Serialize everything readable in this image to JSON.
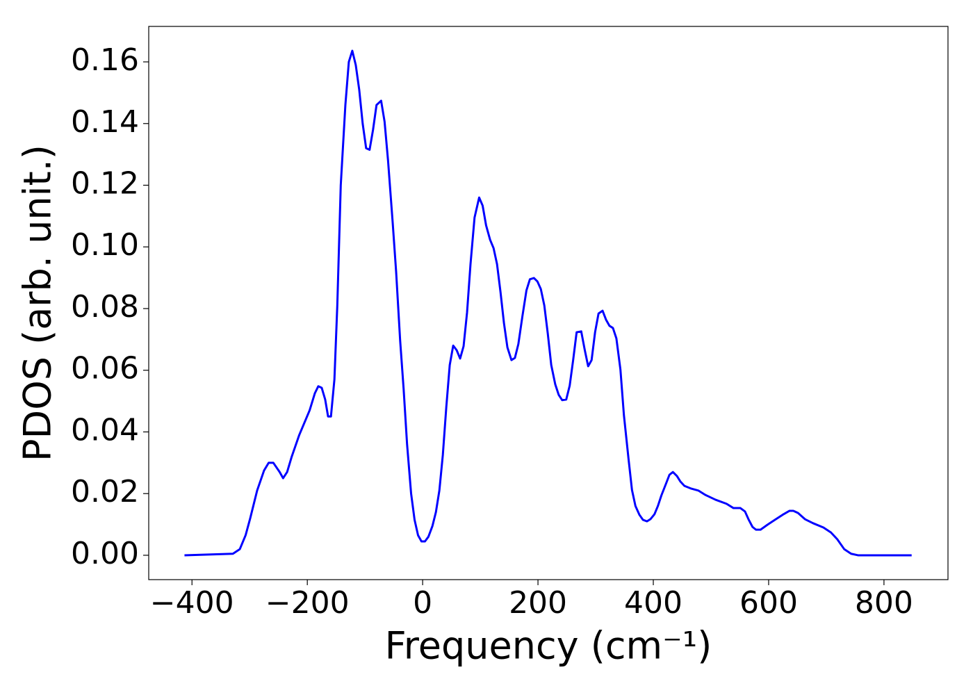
{
  "chart_data": {
    "type": "line",
    "xlabel": "Frequency (cm⁻¹)",
    "ylabel": "PDOS (arb. unit.)",
    "xlim": [
      -475,
      911
    ],
    "ylim": [
      -0.0079,
      0.1715
    ],
    "xticks": [
      {
        "value": -400,
        "label": "−400"
      },
      {
        "value": -200,
        "label": "−200"
      },
      0,
      200,
      400,
      600,
      800
    ],
    "yticks": [
      {
        "value": 0,
        "label": "0.00"
      },
      0.02,
      0.04,
      0.06,
      0.08,
      {
        "value": 0.1,
        "label": "0.10"
      },
      0.12,
      0.14,
      0.16
    ],
    "grid": false,
    "series": [
      {
        "color": "#0000ff",
        "x": [
          -413,
          -329,
          -317,
          -307,
          -299,
          -287,
          -275,
          -267,
          -259,
          -248,
          -242,
          -235,
          -227,
          -214,
          -196,
          -187,
          -181,
          -175,
          -169,
          -164,
          -159,
          -153,
          -148,
          -142,
          -134,
          -128,
          -122,
          -116,
          -110,
          -104,
          -98,
          -92,
          -86,
          -80,
          -72,
          -66,
          -60,
          -52,
          -46,
          -39,
          -33,
          -27,
          -20,
          -14,
          -8,
          -2,
          4,
          10,
          17,
          23,
          29,
          35,
          41,
          47,
          53,
          59,
          65,
          71,
          77,
          83,
          90,
          98,
          104,
          110,
          117,
          123,
          129,
          135,
          141,
          147,
          154,
          160,
          166,
          173,
          180,
          186,
          193,
          199,
          205,
          211,
          217,
          223,
          230,
          236,
          242,
          249,
          255,
          261,
          267,
          275,
          281,
          287,
          293,
          299,
          305,
          312,
          318,
          324,
          330,
          336,
          343,
          349,
          357,
          363,
          369,
          376,
          382,
          389,
          395,
          402,
          408,
          414,
          422,
          428,
          434,
          441,
          447,
          454,
          466,
          478,
          490,
          508,
          527,
          539,
          551,
          559,
          565,
          572,
          578,
          586,
          598,
          611,
          624,
          636,
          643,
          651,
          663,
          677,
          695,
          708,
          719,
          731,
          743,
          755,
          848
        ],
        "values": [
          0,
          0.0005,
          0.002,
          0.0065,
          0.012,
          0.021,
          0.0275,
          0.03,
          0.03,
          0.027,
          0.025,
          0.027,
          0.032,
          0.039,
          0.047,
          0.0525,
          0.0548,
          0.0543,
          0.0505,
          0.045,
          0.045,
          0.057,
          0.081,
          0.12,
          0.146,
          0.16,
          0.1636,
          0.159,
          0.151,
          0.14,
          0.132,
          0.1315,
          0.138,
          0.146,
          0.1474,
          0.1406,
          0.128,
          0.108,
          0.092,
          0.0696,
          0.054,
          0.036,
          0.02,
          0.0115,
          0.0065,
          0.0045,
          0.0045,
          0.006,
          0.0095,
          0.014,
          0.021,
          0.0325,
          0.048,
          0.0617,
          0.068,
          0.0665,
          0.0638,
          0.0678,
          0.0787,
          0.0944,
          0.1095,
          0.116,
          0.1134,
          0.107,
          0.1023,
          0.0996,
          0.0944,
          0.0854,
          0.0753,
          0.0674,
          0.0633,
          0.064,
          0.0685,
          0.0775,
          0.0859,
          0.0895,
          0.0899,
          0.0888,
          0.0863,
          0.081,
          0.0719,
          0.0617,
          0.0554,
          0.052,
          0.0503,
          0.0505,
          0.055,
          0.0633,
          0.0723,
          0.0726,
          0.0667,
          0.0613,
          0.0633,
          0.0723,
          0.0784,
          0.0793,
          0.0764,
          0.0744,
          0.0737,
          0.0703,
          0.0602,
          0.0455,
          0.0313,
          0.0212,
          0.016,
          0.0131,
          0.0115,
          0.011,
          0.0117,
          0.0133,
          0.016,
          0.0194,
          0.0232,
          0.0261,
          0.027,
          0.0257,
          0.0239,
          0.0225,
          0.0216,
          0.021,
          0.0196,
          0.018,
          0.0167,
          0.0153,
          0.0153,
          0.0142,
          0.0117,
          0.0092,
          0.0083,
          0.0083,
          0.0099,
          0.0115,
          0.0131,
          0.0144,
          0.0144,
          0.0137,
          0.0117,
          0.0104,
          0.009,
          0.0074,
          0.0052,
          0.002,
          0.0005,
          0,
          0
        ]
      }
    ]
  }
}
